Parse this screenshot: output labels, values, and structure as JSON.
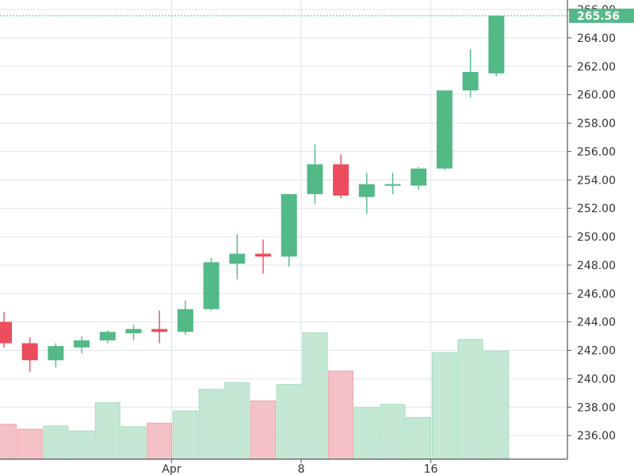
{
  "chart_data": {
    "type": "candlestick",
    "colors": {
      "up": "#53b987",
      "down": "#eb4d5c",
      "volume_up": "#c4e8d4",
      "volume_down": "#f4c2c6",
      "volume_up_border": "#a9dcbf",
      "volume_down_border": "#eba1a7",
      "grid": "#dde4eb",
      "axis": "#555555",
      "last_price": "#53b987"
    },
    "ylim": [
      234,
      266
    ],
    "y_ticks": [
      "236.00",
      "238.00",
      "240.00",
      "242.00",
      "244.00",
      "246.00",
      "248.00",
      "250.00",
      "252.00",
      "254.00",
      "256.00",
      "258.00",
      "260.00",
      "262.00",
      "264.00",
      "266.00"
    ],
    "x_labels": [
      {
        "label": "Apr",
        "index": 6.5
      },
      {
        "label": "8",
        "index": 11.5
      },
      {
        "label": "16",
        "index": 16.5
      }
    ],
    "last_price": "265.56",
    "candles": [
      {
        "open": 244.0,
        "high": 244.7,
        "low": 242.2,
        "close": 242.5,
        "volume": 10.5
      },
      {
        "open": 242.5,
        "high": 242.9,
        "low": 240.5,
        "close": 241.3,
        "volume": 9.0
      },
      {
        "open": 241.3,
        "high": 242.5,
        "low": 240.8,
        "close": 242.3,
        "volume": 10.0
      },
      {
        "open": 242.2,
        "high": 243.0,
        "low": 241.8,
        "close": 242.7,
        "volume": 8.5
      },
      {
        "open": 242.7,
        "high": 243.4,
        "low": 242.5,
        "close": 243.3,
        "volume": 17.0
      },
      {
        "open": 243.2,
        "high": 243.8,
        "low": 242.7,
        "close": 243.5,
        "volume": 9.8
      },
      {
        "open": 243.5,
        "high": 244.8,
        "low": 242.5,
        "close": 243.3,
        "volume": 10.8
      },
      {
        "open": 243.3,
        "high": 245.5,
        "low": 243.1,
        "close": 244.9,
        "volume": 14.5
      },
      {
        "open": 244.9,
        "high": 248.5,
        "low": 244.8,
        "close": 248.2,
        "volume": 21.0
      },
      {
        "open": 248.1,
        "high": 250.2,
        "low": 247.0,
        "close": 248.8,
        "volume": 23.0
      },
      {
        "open": 248.8,
        "high": 249.8,
        "low": 247.4,
        "close": 248.6,
        "volume": 17.5
      },
      {
        "open": 248.6,
        "high": 253.0,
        "low": 247.9,
        "close": 253.0,
        "volume": 22.5
      },
      {
        "open": 253.0,
        "high": 256.5,
        "low": 252.3,
        "close": 255.1,
        "volume": 38.0
      },
      {
        "open": 255.1,
        "high": 255.8,
        "low": 252.7,
        "close": 252.9,
        "volume": 26.5
      },
      {
        "open": 252.8,
        "high": 254.5,
        "low": 251.6,
        "close": 253.7,
        "volume": 15.5
      },
      {
        "open": 253.6,
        "high": 254.5,
        "low": 253.0,
        "close": 253.7,
        "volume": 16.5
      },
      {
        "open": 253.6,
        "high": 254.9,
        "low": 253.3,
        "close": 254.8,
        "volume": 12.5
      },
      {
        "open": 254.8,
        "high": 260.3,
        "low": 254.7,
        "close": 260.3,
        "volume": 32.0
      },
      {
        "open": 260.3,
        "high": 263.2,
        "low": 259.8,
        "close": 261.6,
        "volume": 36.0
      },
      {
        "open": 261.5,
        "high": 265.6,
        "low": 261.3,
        "close": 265.56,
        "volume": 32.5
      }
    ],
    "grid": true
  }
}
